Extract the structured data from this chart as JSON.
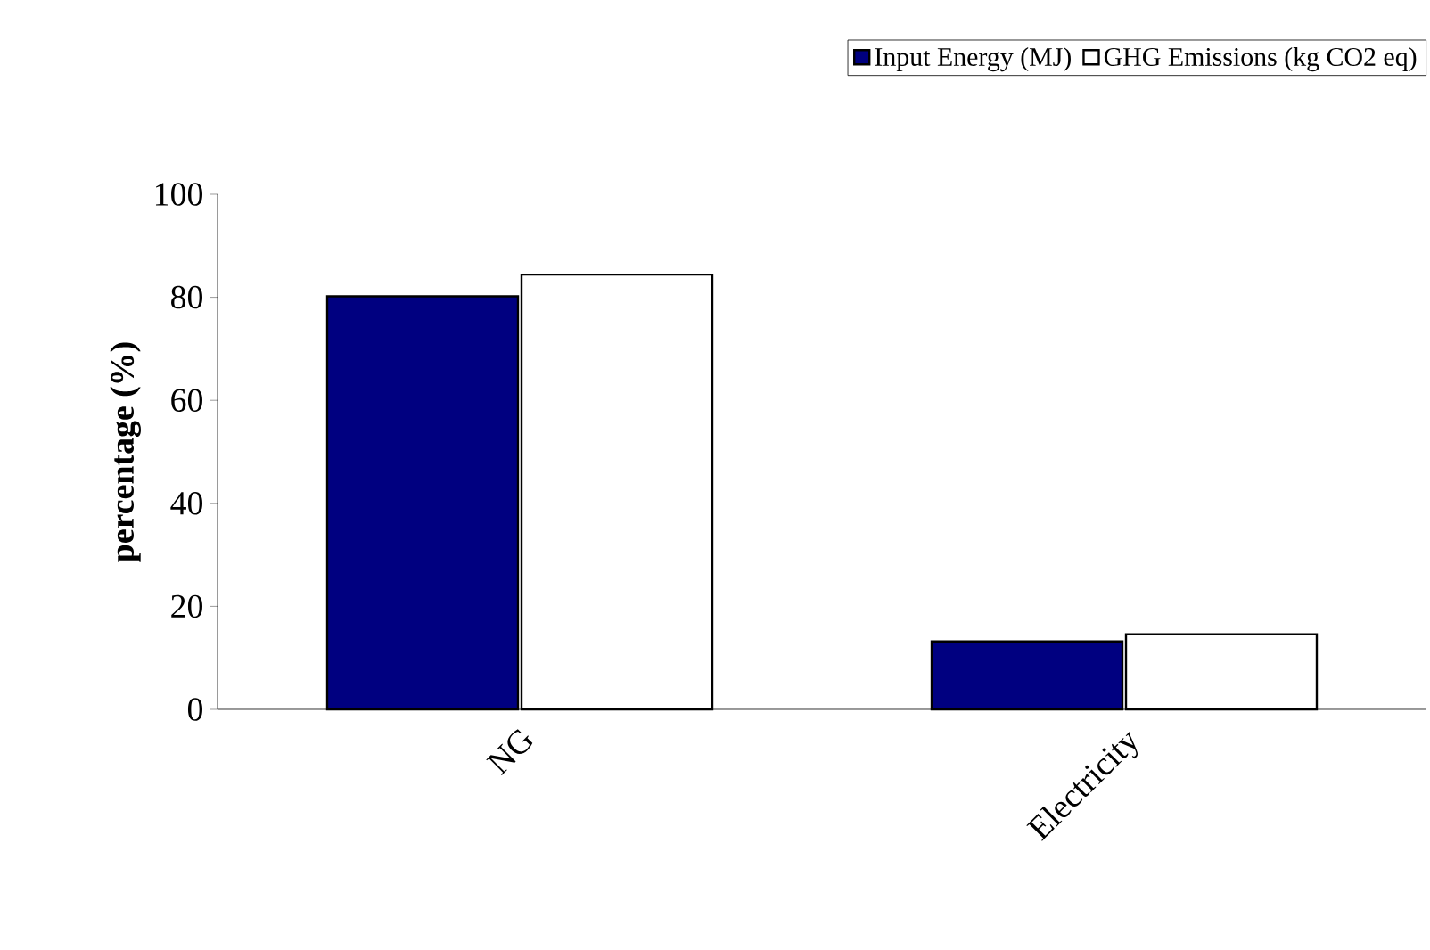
{
  "chart_data": {
    "type": "bar",
    "ylabel": "percentage (%)",
    "categories": [
      "NG",
      "Electricity"
    ],
    "series": [
      {
        "name": "Input Energy (MJ)",
        "color": "#000080",
        "values": [
          80.2,
          13.2
        ]
      },
      {
        "name": "GHG Emissions (kg CO2 eq)",
        "color": "#ffffff",
        "values": [
          84.4,
          14.6
        ]
      }
    ],
    "ylim": [
      0,
      100
    ],
    "yticks": [
      0,
      20,
      40,
      60,
      80,
      100
    ],
    "grid": false,
    "legend": "top right"
  }
}
